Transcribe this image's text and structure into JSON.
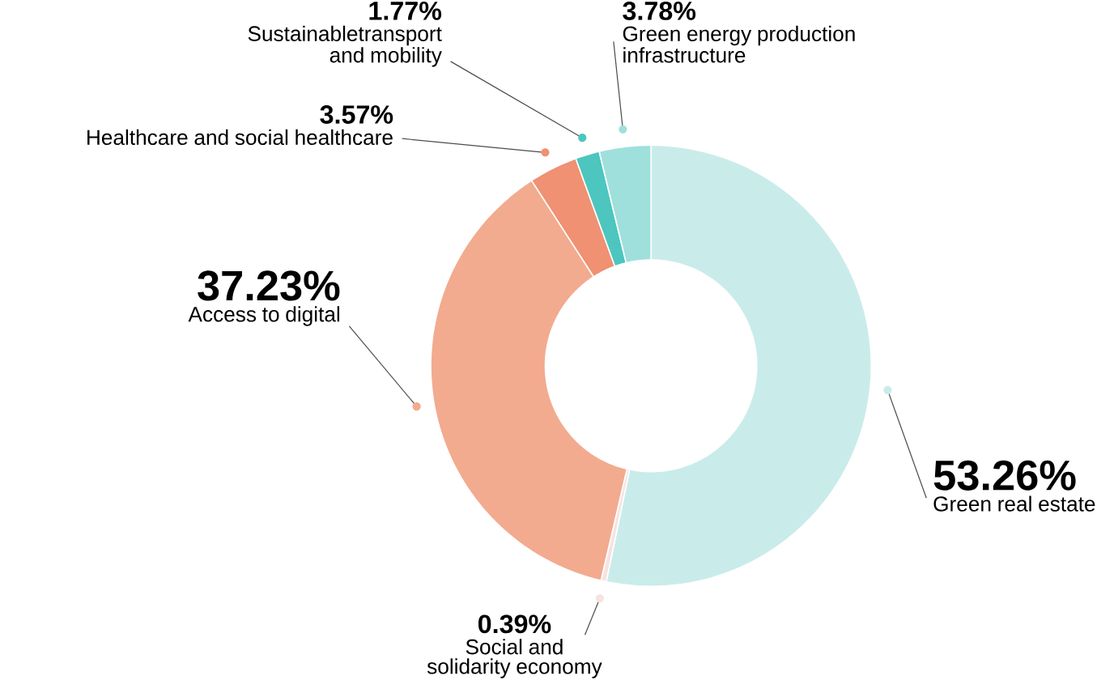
{
  "chart_data": {
    "type": "donut",
    "categories": [
      "Green real estate",
      "Social and solidarity economy",
      "Access to digital",
      "Healthcare and social healthcare",
      "Sustainabletransport and mobility",
      "Green energy production infrastructure"
    ],
    "values": [
      53.26,
      0.39,
      37.23,
      3.57,
      1.77,
      3.78
    ],
    "value_labels": [
      "53.26%",
      "0.39%",
      "37.23%",
      "3.57%",
      "1.77%",
      "3.78%"
    ],
    "colors": [
      "#c9ecea",
      "#f6e3e1",
      "#f2ab8e",
      "#ef9172",
      "#4cc6be",
      "#9fe0dc"
    ]
  }
}
